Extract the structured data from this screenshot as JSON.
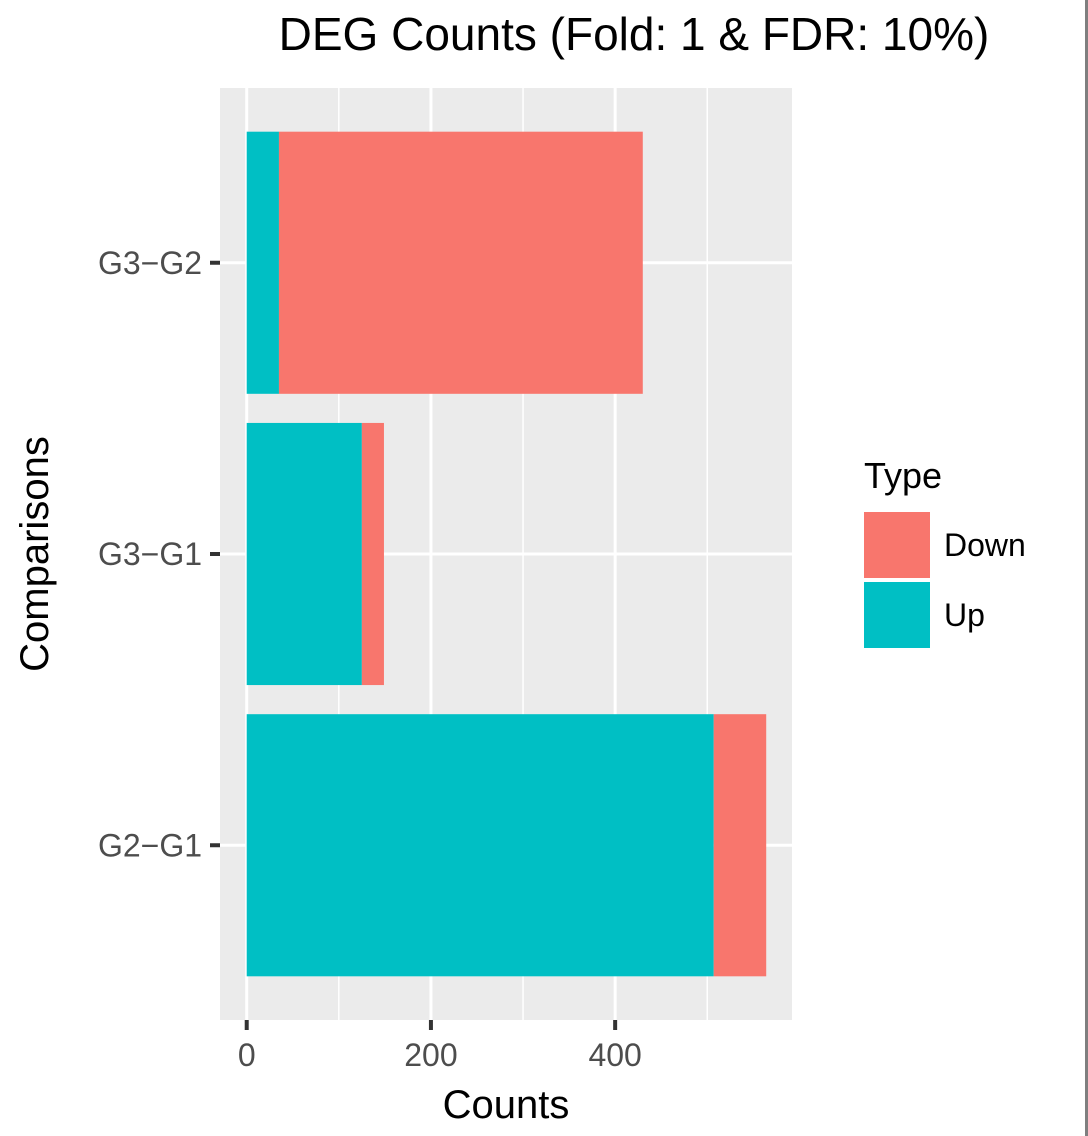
{
  "chart_data": {
    "type": "bar",
    "orientation": "horizontal",
    "stacked": true,
    "title": "DEG Counts (Fold: 1 & FDR: 10%)",
    "xlabel": "Counts",
    "ylabel": "Comparisons",
    "categories": [
      "G3−G2",
      "G3−G1",
      "G2−G1"
    ],
    "series": [
      {
        "name": "Up",
        "color": "#00BFC4",
        "values": [
          35,
          125,
          507
        ]
      },
      {
        "name": "Down",
        "color": "#F8766D",
        "values": [
          395,
          24,
          57
        ]
      }
    ],
    "xlim": [
      -29,
      592
    ],
    "xticks": [
      0,
      200,
      400
    ],
    "grid": true,
    "legend": {
      "title": "Type",
      "placement": "right",
      "entries": [
        {
          "label": "Down",
          "color": "#F8766D"
        },
        {
          "label": "Up",
          "color": "#00BFC4"
        }
      ]
    },
    "panel_color": "#EBEBEB"
  }
}
